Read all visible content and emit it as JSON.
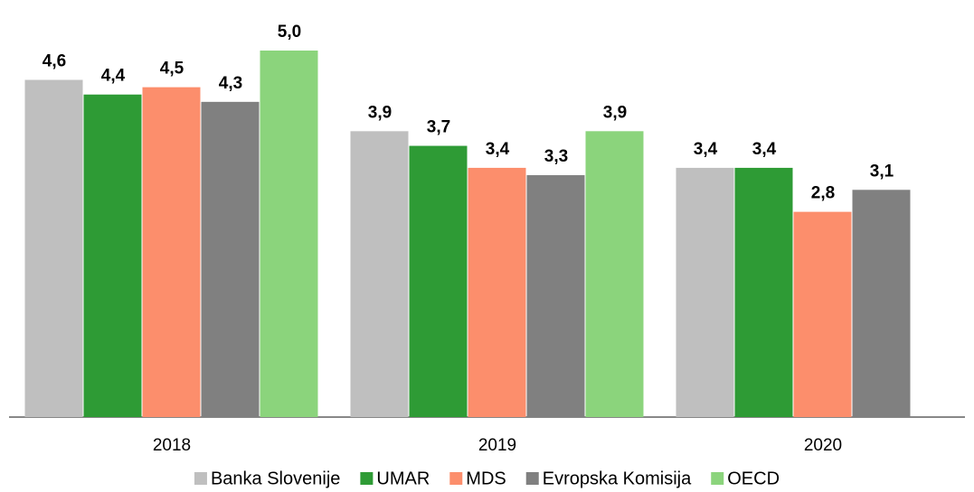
{
  "chart_data": {
    "type": "bar",
    "categories": [
      "2018",
      "2019",
      "2020"
    ],
    "series": [
      {
        "name": "Banka Slovenije",
        "color": "#bfbfbf",
        "values": [
          4.6,
          3.9,
          3.4
        ],
        "value_labels": [
          "4,6",
          "3,9",
          "3,4"
        ]
      },
      {
        "name": "UMAR",
        "color": "#2e9b35",
        "values": [
          4.4,
          3.7,
          3.4
        ],
        "value_labels": [
          "4,4",
          "3,7",
          "3,4"
        ]
      },
      {
        "name": "MDS",
        "color": "#fc8e6c",
        "values": [
          4.5,
          3.4,
          2.8
        ],
        "value_labels": [
          "4,5",
          "3,4",
          "2,8"
        ]
      },
      {
        "name": "Evropska Komisija",
        "color": "#808080",
        "values": [
          4.3,
          3.3,
          3.1
        ],
        "value_labels": [
          "4,3",
          "3,3",
          "3,1"
        ]
      },
      {
        "name": "OECD",
        "color": "#8bd47c",
        "values": [
          5.0,
          3.9,
          null
        ],
        "value_labels": [
          "5,0",
          "3,9",
          null
        ]
      }
    ],
    "ylim": [
      0,
      5
    ],
    "grid": false,
    "legend": "bottom"
  }
}
